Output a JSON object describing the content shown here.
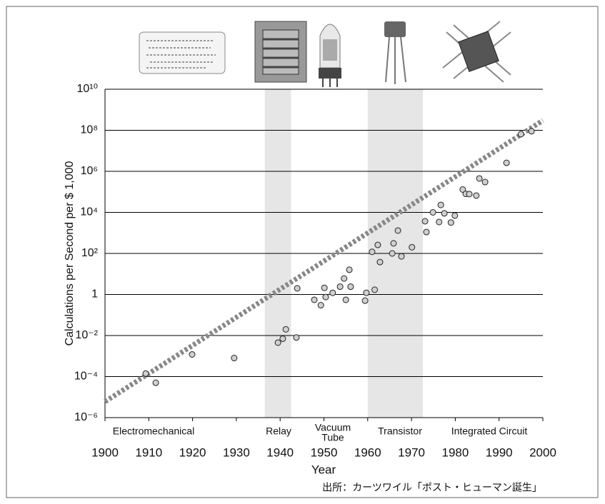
{
  "chart_data": {
    "type": "scatter",
    "ylabel": "Calculations per Second per  $ 1,000",
    "xlabel": "Year",
    "source": "出所：カーツワイル「ポスト・ヒューマン誕生」",
    "yscale": "log",
    "xlim": [
      1900,
      2000
    ],
    "xticks": [
      1900,
      1910,
      1920,
      1930,
      1940,
      1950,
      1960,
      1970,
      1980,
      1990,
      2000
    ],
    "ylim": [
      1e-06,
      10000000000.0
    ],
    "yticks": [
      {
        "value": 1e-06,
        "label": "10⁻⁶"
      },
      {
        "value": 0.0001,
        "label": "10⁻⁴"
      },
      {
        "value": 0.01,
        "label": "10⁻²"
      },
      1,
      {
        "value": 100,
        "label": "10²"
      },
      {
        "value": 10000,
        "label": "10⁴"
      },
      {
        "value": 1000000.0,
        "label": "10⁶"
      },
      {
        "value": 100000000.0,
        "label": "10⁸"
      },
      {
        "value": 10000000000.0,
        "label": "10¹⁰"
      }
    ],
    "grid": true,
    "color": "#d0d0d0",
    "x": [
      1909.3,
      1911.6,
      1919.9,
      1929.5,
      1939.5,
      1940.6,
      1941.3,
      1943.7,
      1943.9,
      1947.8,
      1949.3,
      1950.1,
      1950.4,
      1952,
      1953.7,
      1954.6,
      1955,
      1955.8,
      1956.1,
      1959.4,
      1959.7,
      1961,
      1961.6,
      1962.3,
      1962.8,
      1965.6,
      1965.9,
      1966.9,
      1967.7,
      1970.1,
      1973.1,
      1973.4,
      1974.9,
      1976.3,
      1976.7,
      1977.5,
      1979,
      1979.9,
      1981.7,
      1982.4,
      1983.2,
      1984.8,
      1985.5,
      1986.8,
      1991.7,
      1995,
      1997.4
    ],
    "values": [
      0.00014,
      5e-05,
      0.0012,
      0.0008,
      0.0045,
      0.007,
      0.02,
      0.008,
      2,
      0.55,
      0.3,
      2.1,
      0.75,
      1.2,
      2.4,
      6,
      0.55,
      16,
      2.4,
      0.5,
      1.2,
      120,
      1.7,
      260,
      38,
      100,
      310,
      1300,
      72,
      200,
      3700,
      1100,
      10000,
      3400,
      23000,
      9000,
      3200,
      7000,
      130000,
      80000,
      78000,
      66000,
      450000,
      300000,
      2600000,
      65000000,
      90000000
    ],
    "trend_line": {
      "color": "#888888",
      "x": [
        1900,
        2000
      ],
      "values": [
        6e-06,
        300000000.0
      ]
    },
    "shaded_ranges": [
      [
        1936.5,
        1942.5
      ],
      [
        1960,
        1972.6
      ]
    ],
    "annotations": [
      "Electromechanical",
      "Relay",
      "Vacuum",
      "Tube",
      "Transistor",
      "Integrated Circuit"
    ]
  }
}
